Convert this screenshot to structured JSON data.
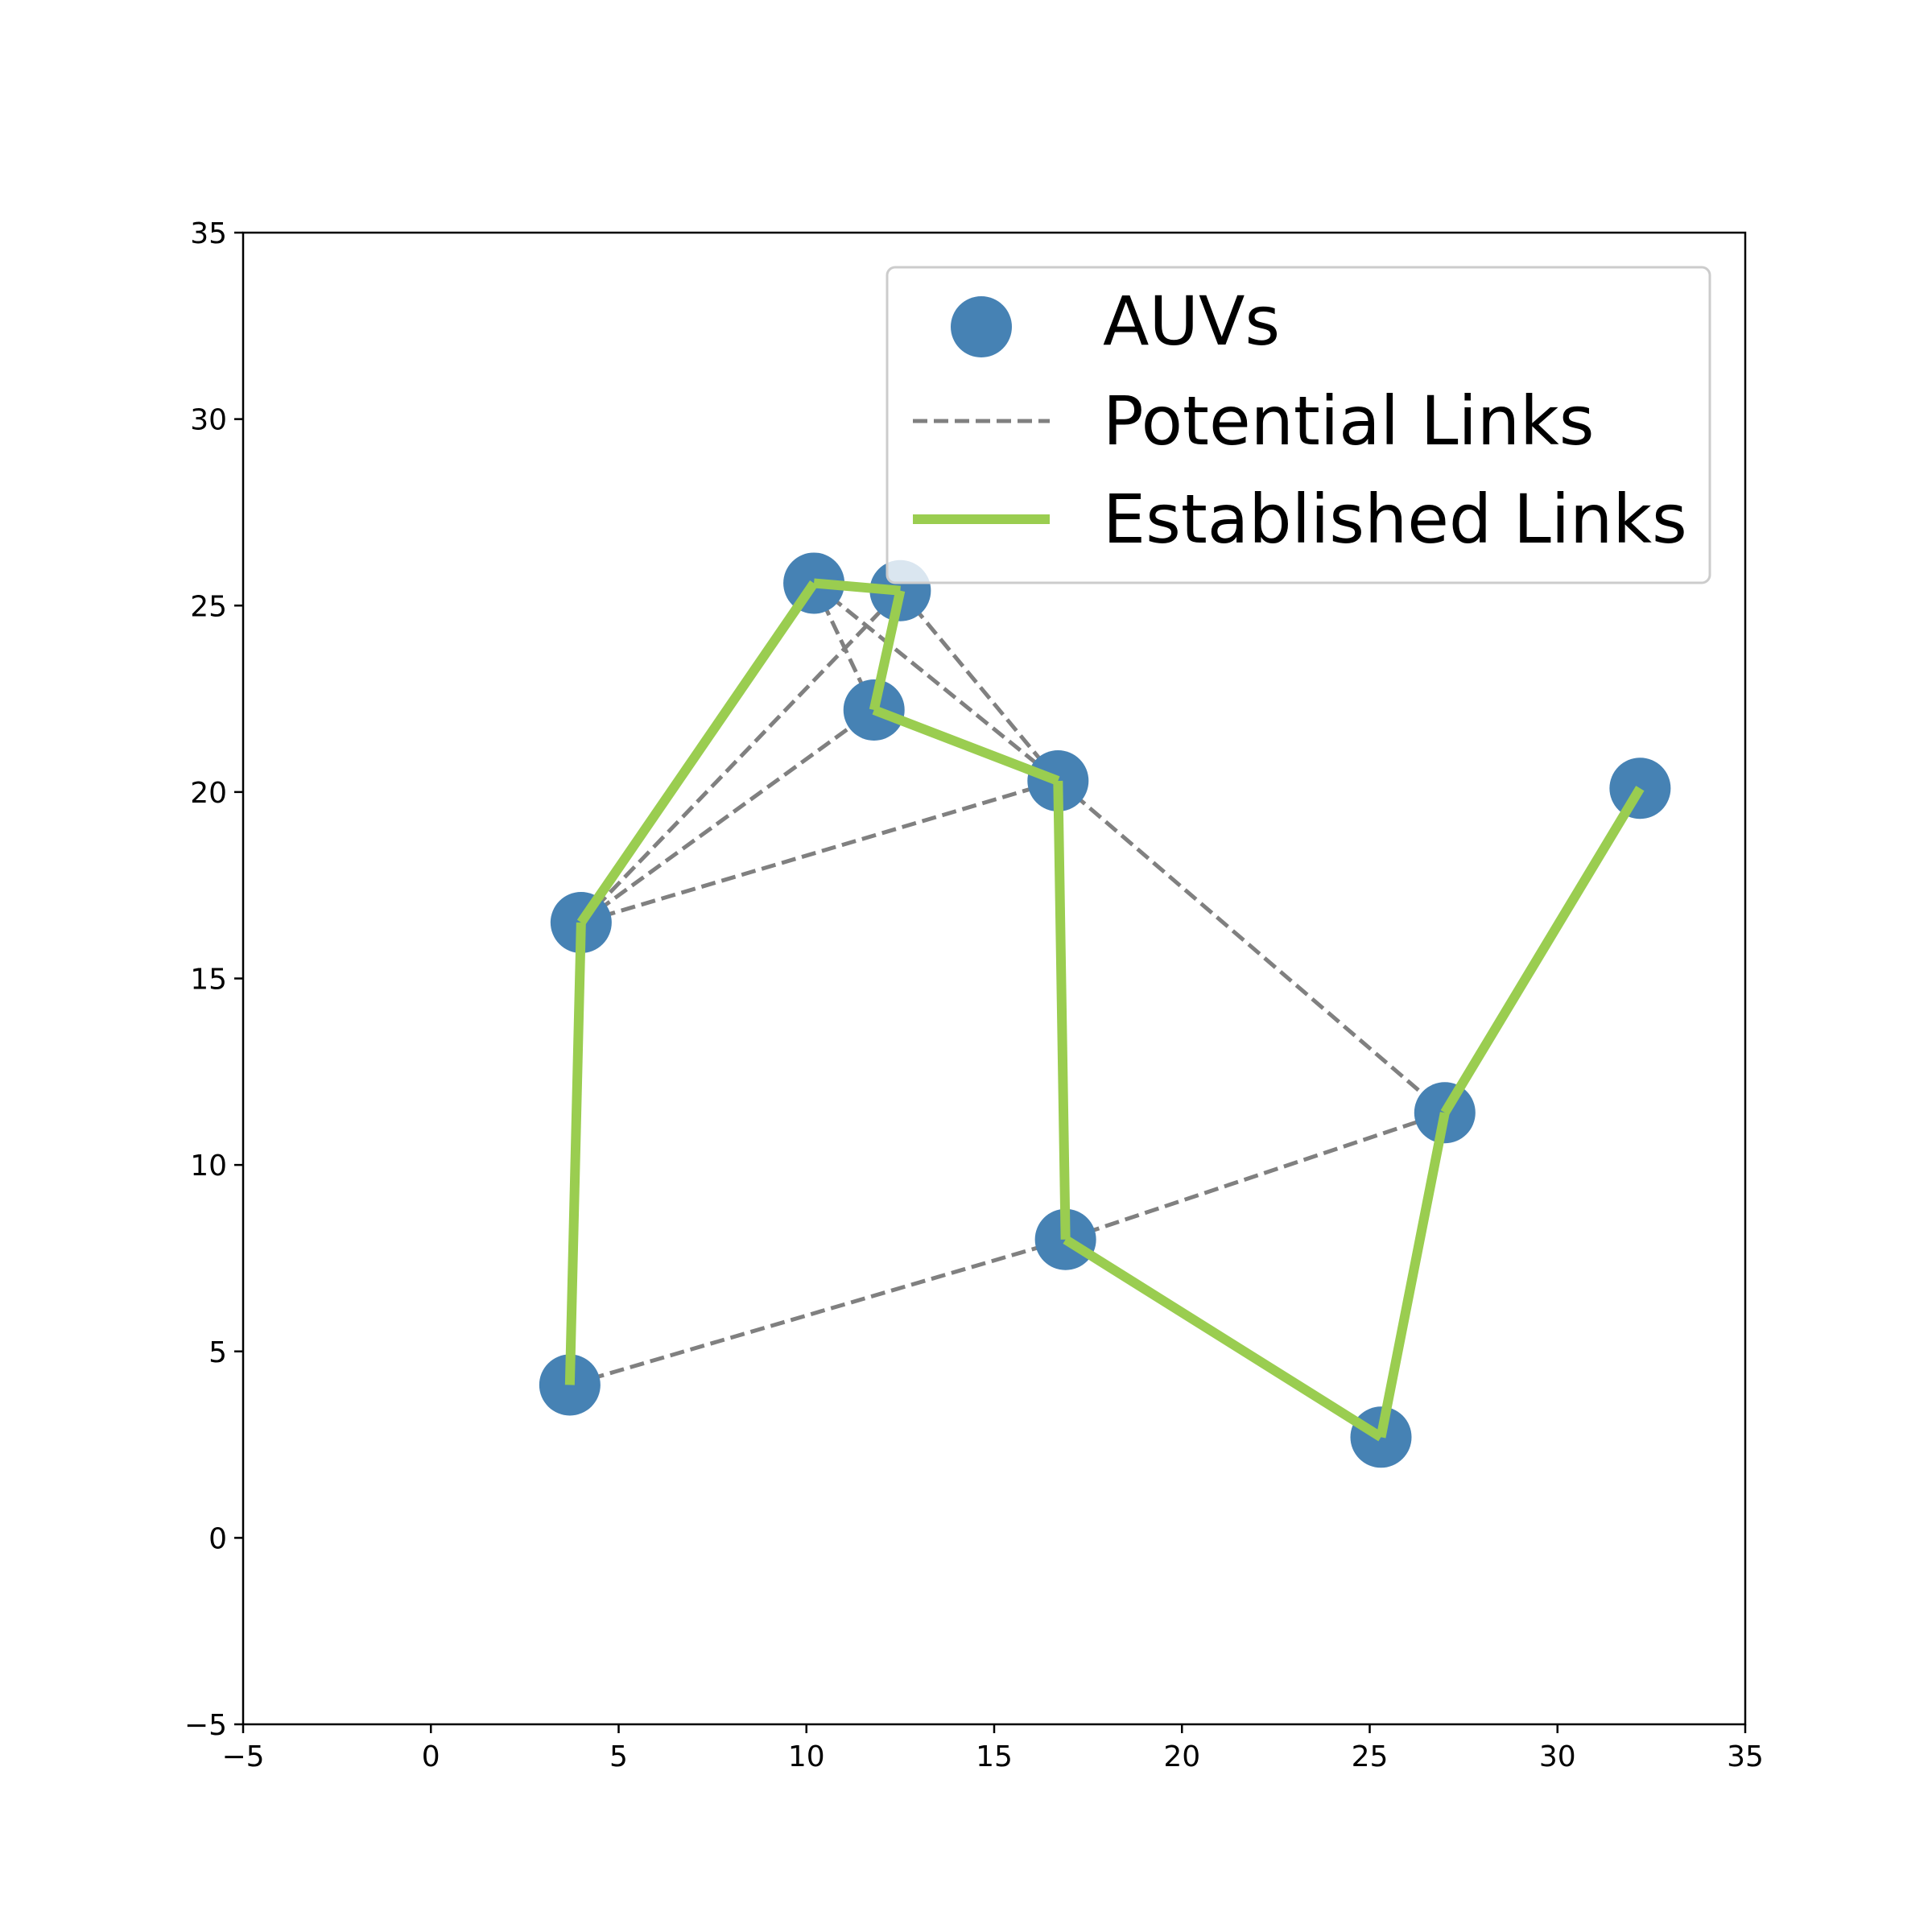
{
  "chart_data": {
    "type": "scatter",
    "title": "",
    "xlabel": "",
    "ylabel": "",
    "xlim": [
      -5,
      35
    ],
    "ylim": [
      -5,
      35
    ],
    "xticks": [
      -5,
      0,
      5,
      10,
      15,
      20,
      25,
      30,
      35
    ],
    "yticks": [
      -5,
      0,
      5,
      10,
      15,
      20,
      25,
      30,
      35
    ],
    "xtick_labels": [
      "−5",
      "0",
      "5",
      "10",
      "15",
      "20",
      "25",
      "30",
      "35"
    ],
    "ytick_labels": [
      "−5",
      "0",
      "5",
      "10",
      "15",
      "20",
      "25",
      "30",
      "35"
    ],
    "grid": false,
    "legend_placement": "top-right",
    "colors": {
      "auv": "#4682b4",
      "potential": "#808080",
      "established": "#9acd50"
    },
    "series": [
      {
        "name": "AUVs",
        "kind": "scatter",
        "points": [
          {
            "x": 10.2,
            "y": 25.6
          },
          {
            "x": 12.5,
            "y": 25.4
          },
          {
            "x": 11.8,
            "y": 22.2
          },
          {
            "x": 16.7,
            "y": 20.3
          },
          {
            "x": 32.2,
            "y": 20.1
          },
          {
            "x": 4.0,
            "y": 16.5
          },
          {
            "x": 27.0,
            "y": 11.4
          },
          {
            "x": 16.9,
            "y": 8.0
          },
          {
            "x": 3.7,
            "y": 4.1
          },
          {
            "x": 25.3,
            "y": 2.7
          }
        ]
      },
      {
        "name": "Potential Links",
        "kind": "segments",
        "segments": [
          [
            [
              4.0,
              16.5
            ],
            [
              12.5,
              25.4
            ]
          ],
          [
            [
              4.0,
              16.5
            ],
            [
              11.8,
              22.2
            ]
          ],
          [
            [
              4.0,
              16.5
            ],
            [
              16.7,
              20.3
            ]
          ],
          [
            [
              10.2,
              25.6
            ],
            [
              11.8,
              22.2
            ]
          ],
          [
            [
              10.2,
              25.6
            ],
            [
              16.7,
              20.3
            ]
          ],
          [
            [
              12.5,
              25.4
            ],
            [
              16.7,
              20.3
            ]
          ],
          [
            [
              16.7,
              20.3
            ],
            [
              27.0,
              11.4
            ]
          ],
          [
            [
              3.7,
              4.1
            ],
            [
              16.9,
              8.0
            ]
          ],
          [
            [
              16.9,
              8.0
            ],
            [
              27.0,
              11.4
            ]
          ]
        ]
      },
      {
        "name": "Established Links",
        "kind": "segments",
        "segments": [
          [
            [
              3.7,
              4.1
            ],
            [
              4.0,
              16.5
            ]
          ],
          [
            [
              4.0,
              16.5
            ],
            [
              10.2,
              25.6
            ]
          ],
          [
            [
              10.2,
              25.6
            ],
            [
              12.5,
              25.4
            ]
          ],
          [
            [
              12.5,
              25.4
            ],
            [
              11.8,
              22.2
            ]
          ],
          [
            [
              11.8,
              22.2
            ],
            [
              16.7,
              20.3
            ]
          ],
          [
            [
              16.7,
              20.3
            ],
            [
              16.9,
              8.0
            ]
          ],
          [
            [
              16.9,
              8.0
            ],
            [
              25.3,
              2.7
            ]
          ],
          [
            [
              25.3,
              2.7
            ],
            [
              27.0,
              11.4
            ]
          ],
          [
            [
              27.0,
              11.4
            ],
            [
              32.2,
              20.1
            ]
          ]
        ]
      }
    ],
    "legend": [
      "AUVs",
      "Potential Links",
      "Established Links"
    ]
  }
}
